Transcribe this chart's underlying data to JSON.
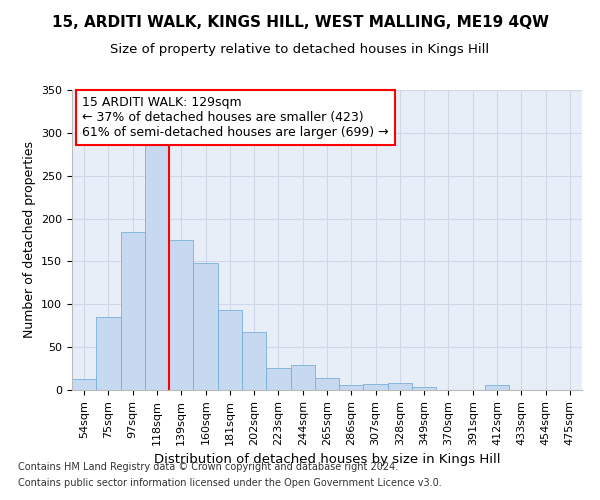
{
  "title": "15, ARDITI WALK, KINGS HILL, WEST MALLING, ME19 4QW",
  "subtitle": "Size of property relative to detached houses in Kings Hill",
  "xlabel": "Distribution of detached houses by size in Kings Hill",
  "ylabel": "Number of detached properties",
  "footnote1": "Contains HM Land Registry data © Crown copyright and database right 2024.",
  "footnote2": "Contains public sector information licensed under the Open Government Licence v3.0.",
  "annotation_line1": "15 ARDITI WALK: 129sqm",
  "annotation_line2": "← 37% of detached houses are smaller (423)",
  "annotation_line3": "61% of semi-detached houses are larger (699) →",
  "bar_color": "#c6d9f0",
  "bar_edge_color": "#7ab0d8",
  "categories": [
    "54sqm",
    "75sqm",
    "97sqm",
    "118sqm",
    "139sqm",
    "160sqm",
    "181sqm",
    "202sqm",
    "223sqm",
    "244sqm",
    "265sqm",
    "286sqm",
    "307sqm",
    "328sqm",
    "349sqm",
    "370sqm",
    "391sqm",
    "412sqm",
    "433sqm",
    "454sqm",
    "475sqm"
  ],
  "values": [
    13,
    85,
    184,
    290,
    175,
    148,
    93,
    68,
    26,
    29,
    14,
    6,
    7,
    8,
    3,
    0,
    0,
    6,
    0,
    0,
    0
  ],
  "red_line_x": 3.5,
  "ylim": [
    0,
    350
  ],
  "yticks": [
    0,
    50,
    100,
    150,
    200,
    250,
    300,
    350
  ],
  "grid_color": "#d0d8e8",
  "background_color": "#e8eef8",
  "title_fontsize": 11,
  "subtitle_fontsize": 9.5,
  "ylabel_fontsize": 9,
  "xlabel_fontsize": 9.5,
  "tick_fontsize": 8,
  "footnote_fontsize": 7,
  "annotation_fontsize": 9
}
